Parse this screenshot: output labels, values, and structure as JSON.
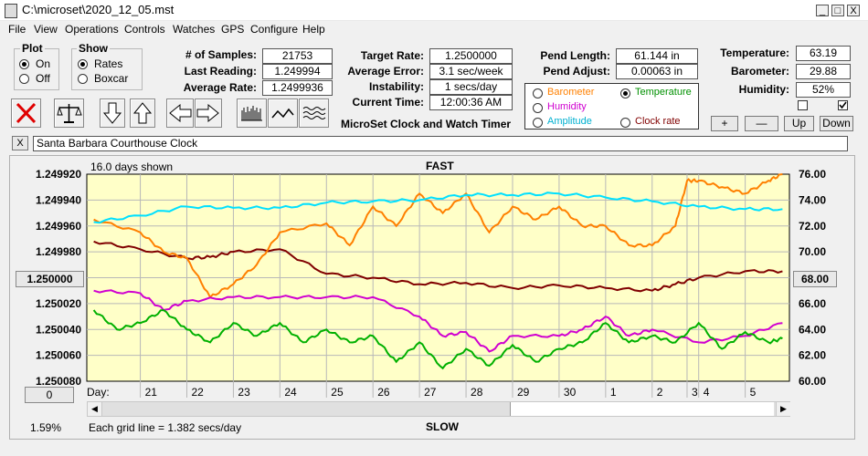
{
  "window": {
    "title": "C:\\microset\\2020_12_05.mst",
    "min": "_",
    "max": "□",
    "close": "X"
  },
  "menu": [
    "File",
    "View",
    "Operations",
    "Controls",
    "Watches",
    "GPS",
    "Configure",
    "Help"
  ],
  "plot_group": {
    "title": "Plot",
    "options": [
      "On",
      "Off"
    ],
    "selected": "On"
  },
  "show_group": {
    "title": "Show",
    "options": [
      "Rates",
      "Boxcar"
    ],
    "selected": "Rates"
  },
  "stats": [
    {
      "label": "# of Samples:",
      "value": "21753"
    },
    {
      "label": "Last Reading:",
      "value": "1.249994"
    },
    {
      "label": "Average Rate:",
      "value": "1.2499936"
    }
  ],
  "rates": [
    {
      "label": "Target Rate:",
      "value": "1.2500000"
    },
    {
      "label": "Average Error:",
      "value": "3.1 sec/week"
    },
    {
      "label": "Instability:",
      "value": "1 secs/day"
    },
    {
      "label": "Current Time:",
      "value": "12:00:36 AM"
    }
  ],
  "pendulum": [
    {
      "label": "Pend Length:",
      "value": "61.144 in"
    },
    {
      "label": "Pend Adjust:",
      "value": "0.00063 in"
    }
  ],
  "environment": [
    {
      "label": "Temperature:",
      "value": "63.19"
    },
    {
      "label": "Barometer:",
      "value": "29.88"
    },
    {
      "label": "Humidity:",
      "value": "52%"
    }
  ],
  "app_caption": "MicroSet Clock and Watch Timer",
  "series_select": {
    "options": [
      {
        "label": "Barometer",
        "color": "#ff8000",
        "selected": false
      },
      {
        "label": "Temperature",
        "color": "#009000",
        "selected": true
      },
      {
        "label": "Humidity",
        "color": "#d000d0",
        "selected": false
      },
      {
        "label": "Clock rate",
        "color": "#800000",
        "selected": false
      },
      {
        "label": "Amplitude",
        "color": "#00b0d0",
        "selected": false
      }
    ]
  },
  "checkboxes": [
    false,
    true
  ],
  "adjust_buttons": [
    "+",
    "—",
    "Up",
    "Down"
  ],
  "clock_name": {
    "close": "X",
    "value": "Santa Barbara Courthouse Clock"
  },
  "chart_panel": {
    "days_shown": "16.0 days shown",
    "top_caption": "FAST",
    "bottom_caption": "SLOW",
    "grid_note": "Each grid line = 1.382 secs/day",
    "left_button": "1.250000",
    "right_button": "68.00",
    "offset_button": "0",
    "percent": "1.59%",
    "day_label": "Day:"
  },
  "chart_data": {
    "type": "line",
    "plot_bg": "#ffffc8",
    "y_left": {
      "labels": [
        "1.249920",
        "1.249940",
        "1.249960",
        "1.249980",
        "1.250000",
        "1.250020",
        "1.250040",
        "1.250060",
        "1.250080"
      ],
      "range": [
        1.25008,
        1.24992
      ]
    },
    "y_right": {
      "labels": [
        "76.00",
        "74.00",
        "72.00",
        "70.00",
        "68.00",
        "66.00",
        "64.00",
        "62.00",
        "60.00"
      ],
      "range": [
        60,
        76
      ]
    },
    "x_days": [
      {
        "label": "21",
        "day": 0.0
      },
      {
        "label": "22",
        "day": 1.0
      },
      {
        "label": "23",
        "day": 2.0
      },
      {
        "label": "24",
        "day": 3.0
      },
      {
        "label": "25",
        "day": 4.0
      },
      {
        "label": "26",
        "day": 5.0
      },
      {
        "label": "27",
        "day": 6.0
      },
      {
        "label": "28",
        "day": 7.0
      },
      {
        "label": "29",
        "day": 8.0
      },
      {
        "label": "30",
        "day": 9.0
      },
      {
        "label": "1",
        "day": 10.0
      },
      {
        "label": "2",
        "day": 11.0
      },
      {
        "label": "3",
        "day": 11.75
      },
      {
        "label": "4",
        "day": 12.0
      },
      {
        "label": "5",
        "day": 13.0
      }
    ],
    "series": [
      {
        "name": "Clock rate",
        "color": "#800000",
        "x": [
          -1,
          0,
          1,
          1.5,
          2,
          3,
          4,
          5,
          6,
          7,
          8,
          9,
          10,
          11,
          11.5,
          12,
          13,
          13.8
        ],
        "y": [
          70.8,
          70.2,
          69.5,
          69.6,
          70.0,
          70.2,
          68.3,
          68.0,
          67.5,
          67.6,
          67.2,
          67.4,
          67.2,
          67.0,
          67.5,
          68.0,
          68.5,
          68.5
        ]
      },
      {
        "name": "Barometer",
        "color": "#ff8000",
        "x": [
          -1,
          0,
          0.5,
          1,
          1.5,
          2,
          2.5,
          3,
          4,
          4.5,
          5,
          5.5,
          6,
          6.5,
          7,
          7.5,
          8,
          8.5,
          9,
          9.5,
          10,
          10.5,
          11,
          11.5,
          11.75,
          12,
          12.5,
          13,
          13.5,
          13.8
        ],
        "y": [
          72.5,
          71.5,
          70.0,
          69.5,
          66.5,
          67.5,
          69.0,
          71.5,
          72.2,
          70.5,
          73.5,
          72.0,
          74.5,
          73.0,
          74.5,
          71.5,
          73.5,
          72.5,
          73.5,
          72.0,
          72.0,
          70.5,
          70.5,
          72.0,
          75.5,
          75.5,
          75.0,
          74.5,
          75.5,
          76.0
        ]
      },
      {
        "name": "Amplitude",
        "color": "#00e0ff",
        "x": [
          -1,
          0,
          1,
          2,
          3,
          4,
          5,
          6,
          7,
          8,
          9,
          10,
          11,
          12,
          13,
          13.8
        ],
        "y": [
          72.3,
          72.8,
          73.5,
          73.4,
          73.4,
          73.8,
          73.9,
          74.0,
          74.4,
          74.4,
          74.5,
          74.2,
          73.9,
          73.5,
          73.3,
          73.3
        ]
      },
      {
        "name": "Humidity",
        "color": "#d000d0",
        "x": [
          -1,
          0,
          0.5,
          1,
          2,
          3,
          4,
          5,
          6,
          6.5,
          7,
          7.5,
          8,
          9,
          9.5,
          10,
          10.5,
          11,
          12,
          13,
          13.8
        ],
        "y": [
          67.0,
          66.8,
          65.5,
          66.2,
          66.5,
          66.5,
          66.5,
          66.5,
          65.0,
          63.5,
          63.8,
          62.3,
          63.5,
          63.5,
          64.0,
          65.0,
          63.5,
          64.0,
          63.0,
          63.5,
          64.5
        ]
      },
      {
        "name": "Temperature",
        "color": "#00b000",
        "x": [
          -1,
          -0.5,
          0,
          0.5,
          1,
          1.5,
          2,
          2.5,
          3,
          3.5,
          4,
          4.5,
          5,
          5.5,
          6,
          6.5,
          7,
          7.5,
          8,
          8.5,
          9,
          9.5,
          10,
          10.5,
          11,
          11.5,
          12,
          12.5,
          13,
          13.5,
          13.8
        ],
        "y": [
          65.5,
          64.0,
          64.5,
          65.5,
          64.0,
          63.0,
          64.5,
          63.5,
          64.5,
          63.0,
          64.0,
          63.0,
          63.5,
          61.5,
          63.0,
          61.0,
          62.5,
          61.2,
          62.8,
          61.5,
          62.5,
          63.0,
          64.5,
          63.0,
          63.5,
          63.0,
          64.5,
          62.5,
          63.8,
          63.0,
          63.3
        ]
      }
    ]
  }
}
